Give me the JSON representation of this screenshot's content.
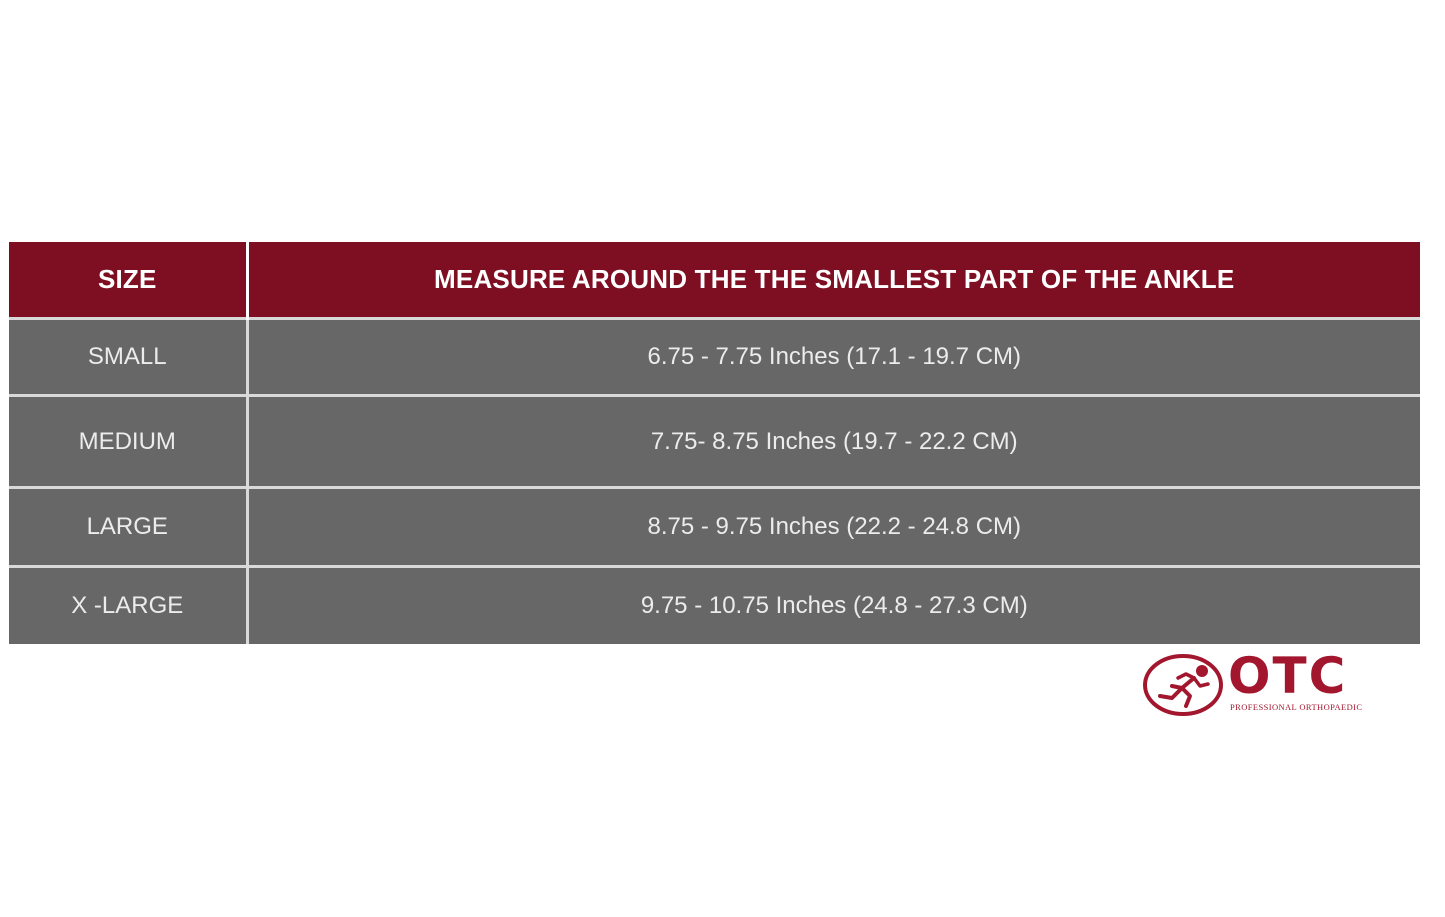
{
  "table": {
    "headers": {
      "size": "SIZE",
      "measure": "MEASURE AROUND THE THE SMALLEST PART OF THE ANKLE"
    },
    "rows": [
      {
        "size": "SMALL",
        "measure": "6.75 - 7.75 Inches (17.1 - 19.7 CM)"
      },
      {
        "size": "MEDIUM",
        "measure": "7.75- 8.75 Inches (19.7 - 22.2 CM)"
      },
      {
        "size": "LARGE",
        "measure": "8.75 - 9.75 Inches (22.2 - 24.8 CM)"
      },
      {
        "size": "X -LARGE",
        "measure": "9.75 - 10.75 Inches (24.8 - 27.3 CM)"
      }
    ]
  },
  "logo": {
    "word": "OTC",
    "tagline": "PROFESSIONAL ORTHOPAEDIC",
    "icon": "running-person-icon"
  },
  "colors": {
    "header_bg": "#7e0f22",
    "row_bg": "#676767",
    "brand": "#a2162e"
  }
}
